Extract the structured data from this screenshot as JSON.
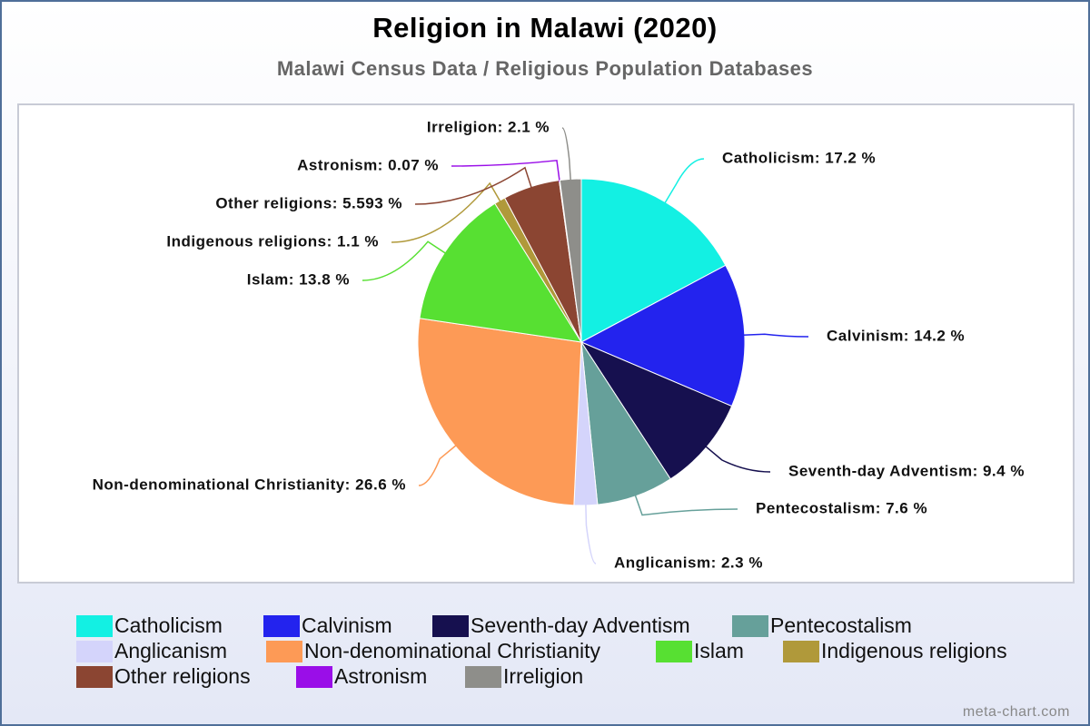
{
  "chart_data": {
    "type": "pie",
    "title": "Religion in Malawi (2020)",
    "subtitle": "Malawi Census Data / Religious Population Databases",
    "categories": [
      "Catholicism",
      "Calvinism",
      "Seventh-day Adventism",
      "Pentecostalism",
      "Anglicanism",
      "Non-denominational Christianity",
      "Islam",
      "Indigenous religions",
      "Other religions",
      "Astronism",
      "Irreligion"
    ],
    "values": [
      17.2,
      14.2,
      9.4,
      7.6,
      2.3,
      26.6,
      13.8,
      1.1,
      5.593,
      0.07,
      2.1
    ],
    "value_labels": [
      "Catholicism: 17.2 %",
      "Calvinism: 14.2 %",
      "Seventh-day Adventism: 9.4 %",
      "Pentecostalism: 7.6 %",
      "Anglicanism: 2.3 %",
      "Non-denominational Christianity: 26.6 %",
      "Islam: 13.8 %",
      "Indigenous religions: 1.1 %",
      "Other religions: 5.593 %",
      "Astronism: 0.07 %",
      "Irreligion: 2.1 %"
    ],
    "colors": [
      "#13f0e3",
      "#2323ee",
      "#16104f",
      "#66a09a",
      "#d4d4fb",
      "#fd9a56",
      "#57e032",
      "#b0993a",
      "#8b4532",
      "#9a0ee8",
      "#8e8e8a"
    ],
    "watermark": "meta-chart.com"
  }
}
